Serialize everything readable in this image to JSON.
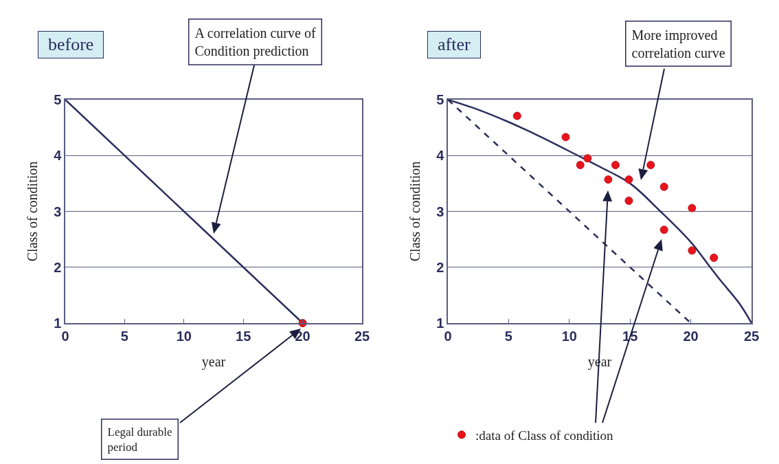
{
  "chart_data": [
    {
      "type": "line",
      "title": "before",
      "xlabel": "year",
      "ylabel": "Class of condition",
      "xlim": [
        0,
        25
      ],
      "xticks": [
        0,
        5,
        10,
        15,
        20,
        25
      ],
      "ylim": [
        1,
        5
      ],
      "yticks": [
        1,
        2,
        3,
        4,
        5
      ],
      "grid": "y",
      "legend": false,
      "series": [
        {
          "color": "#2b2d5c",
          "x": [
            0,
            20
          ],
          "values": [
            5,
            1
          ],
          "marker": "none",
          "line_style": "solid"
        },
        {
          "type": "scatter",
          "color": "#e8141c",
          "x": [
            20
          ],
          "values": [
            1
          ],
          "marker": "circle"
        }
      ],
      "annotations": [
        "A correlation curve of\nCondition prediction",
        "Legal durable\nperiod"
      ]
    },
    {
      "type": "line",
      "title": "after",
      "xlabel": "year",
      "ylabel": "Class of condition",
      "xlim": [
        0,
        25
      ],
      "xticks": [
        0,
        5,
        10,
        15,
        20,
        25
      ],
      "ylim": [
        1,
        5
      ],
      "yticks": [
        1,
        2,
        3,
        4,
        5
      ],
      "grid": "y",
      "legend": "bottom",
      "series": [
        {
          "color": "#2b2d5c",
          "x": [
            0,
            20
          ],
          "values": [
            5,
            1
          ],
          "marker": "none",
          "line_style": "dashed"
        },
        {
          "color": "#2b2d5c",
          "x": [
            0,
            2.5,
            5,
            7.5,
            10.7,
            12.5,
            15,
            17.5,
            20,
            21.6,
            22.5,
            24,
            25
          ],
          "values": [
            5,
            4.82,
            4.6,
            4.35,
            4,
            3.8,
            3.5,
            3,
            2.45,
            2,
            1.75,
            1.35,
            1
          ],
          "marker": "none",
          "line_style": "solid"
        },
        {
          "type": "scatter",
          "name": ":data of Class of condition",
          "color": "#e8141c",
          "marker": "circle",
          "x": [
            5.7,
            9.7,
            10.9,
            11.5,
            13.2,
            13.8,
            14.9,
            14.9,
            16.7,
            17.8,
            17.8,
            20.1,
            20.1,
            21.9
          ],
          "values": [
            4.71,
            4.33,
            3.83,
            3.95,
            3.57,
            3.83,
            3.57,
            3.19,
            3.83,
            3.44,
            2.67,
            3.06,
            2.3,
            2.17
          ]
        }
      ],
      "annotations": [
        "More improved\ncorrelation curve"
      ]
    }
  ]
}
